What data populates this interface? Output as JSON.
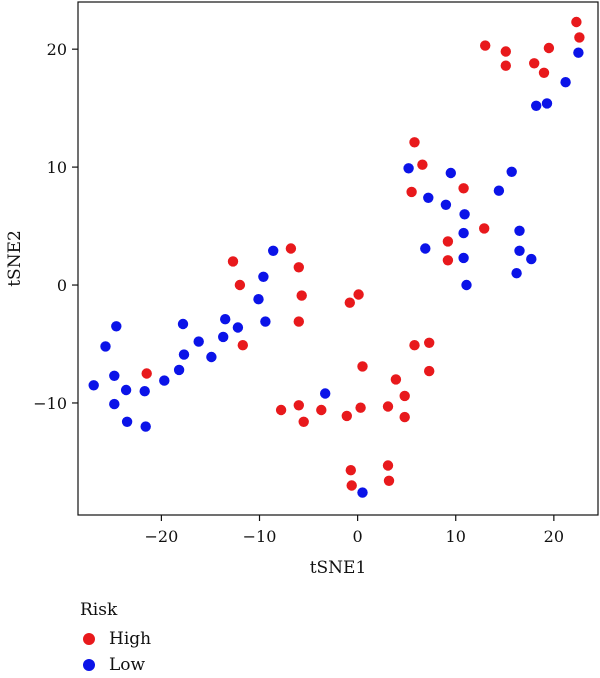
{
  "chart_data": {
    "type": "scatter",
    "xlabel": "tSNE1",
    "ylabel": "tSNE2",
    "xlim": [
      -28.5,
      24.5
    ],
    "ylim": [
      -19.5,
      24
    ],
    "xticks": [
      -20,
      -10,
      0,
      10,
      20
    ],
    "yticks": [
      -10,
      0,
      10,
      20
    ],
    "xtick_labels": [
      "−20",
      "−10",
      "0",
      "10",
      "20"
    ],
    "ytick_labels": [
      "−10",
      "0",
      "10",
      "20"
    ],
    "grid": false,
    "legend": {
      "title": "Risk",
      "position": "bottom-left, below plot"
    },
    "series": [
      {
        "name": "High",
        "color": "#e8191c",
        "points": [
          [
            22.3,
            22.3
          ],
          [
            22.6,
            21.0
          ],
          [
            13.0,
            20.3
          ],
          [
            15.1,
            19.8
          ],
          [
            19.5,
            20.1
          ],
          [
            15.1,
            18.6
          ],
          [
            18.0,
            18.8
          ],
          [
            19.0,
            18.0
          ],
          [
            5.8,
            12.1
          ],
          [
            6.6,
            10.2
          ],
          [
            5.5,
            7.9
          ],
          [
            10.8,
            8.2
          ],
          [
            12.9,
            4.8
          ],
          [
            9.2,
            3.7
          ],
          [
            9.2,
            2.1
          ],
          [
            -12.7,
            2.0
          ],
          [
            -12.0,
            0.0
          ],
          [
            -6.8,
            3.1
          ],
          [
            -6.0,
            1.5
          ],
          [
            -5.7,
            -0.9
          ],
          [
            -6.0,
            -3.1
          ],
          [
            -11.7,
            -5.1
          ],
          [
            -21.5,
            -7.5
          ],
          [
            -0.8,
            -1.5
          ],
          [
            0.1,
            -0.8
          ],
          [
            5.8,
            -5.1
          ],
          [
            7.3,
            -4.9
          ],
          [
            7.3,
            -7.3
          ],
          [
            3.9,
            -8.0
          ],
          [
            0.5,
            -6.9
          ],
          [
            -7.8,
            -10.6
          ],
          [
            -6.0,
            -10.2
          ],
          [
            -5.5,
            -11.6
          ],
          [
            -3.7,
            -10.6
          ],
          [
            -1.1,
            -11.1
          ],
          [
            0.3,
            -10.4
          ],
          [
            3.1,
            -10.3
          ],
          [
            4.8,
            -9.4
          ],
          [
            4.8,
            -11.2
          ],
          [
            -0.7,
            -15.7
          ],
          [
            3.1,
            -15.3
          ],
          [
            -0.6,
            -17.0
          ],
          [
            3.2,
            -16.6
          ]
        ]
      },
      {
        "name": "Low",
        "color": "#0b13e8",
        "points": [
          [
            22.5,
            19.7
          ],
          [
            21.2,
            17.2
          ],
          [
            18.2,
            15.2
          ],
          [
            19.3,
            15.4
          ],
          [
            5.2,
            9.9
          ],
          [
            9.5,
            9.5
          ],
          [
            15.7,
            9.6
          ],
          [
            7.2,
            7.4
          ],
          [
            9.0,
            6.8
          ],
          [
            14.4,
            8.0
          ],
          [
            10.9,
            6.0
          ],
          [
            6.9,
            3.1
          ],
          [
            10.8,
            4.4
          ],
          [
            16.5,
            4.6
          ],
          [
            10.8,
            2.3
          ],
          [
            16.5,
            2.9
          ],
          [
            17.7,
            2.2
          ],
          [
            16.2,
            1.0
          ],
          [
            11.1,
            0.0
          ],
          [
            -8.6,
            2.9
          ],
          [
            -9.6,
            0.7
          ],
          [
            -10.1,
            -1.2
          ],
          [
            -9.4,
            -3.1
          ],
          [
            -13.5,
            -2.9
          ],
          [
            -17.8,
            -3.3
          ],
          [
            -24.6,
            -3.5
          ],
          [
            -12.2,
            -3.6
          ],
          [
            -13.7,
            -4.4
          ],
          [
            -16.2,
            -4.8
          ],
          [
            -17.7,
            -5.9
          ],
          [
            -14.9,
            -6.1
          ],
          [
            -25.7,
            -5.2
          ],
          [
            -18.2,
            -7.2
          ],
          [
            -19.7,
            -8.1
          ],
          [
            -26.9,
            -8.5
          ],
          [
            -24.8,
            -7.7
          ],
          [
            -21.7,
            -9.0
          ],
          [
            -23.6,
            -8.9
          ],
          [
            -24.8,
            -10.1
          ],
          [
            -23.5,
            -11.6
          ],
          [
            -21.6,
            -12.0
          ],
          [
            -3.3,
            -9.2
          ],
          [
            0.5,
            -17.6
          ]
        ]
      }
    ]
  }
}
